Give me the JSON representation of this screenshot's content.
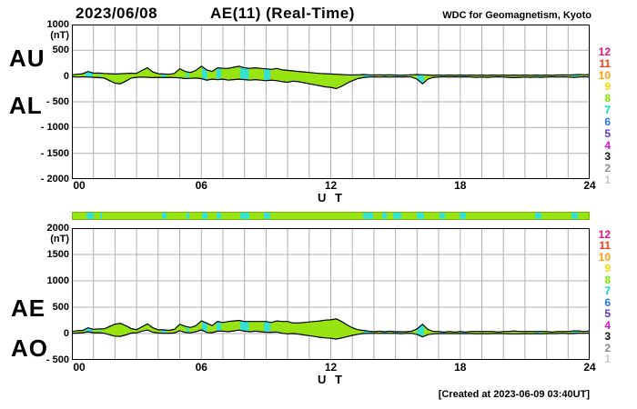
{
  "header": {
    "date": "2023/06/08",
    "title": "AE(11) (Real-Time)",
    "org": "WDC for Geomagnetism, Kyoto"
  },
  "footer": {
    "created_at": "[Created at 2023-06-09 03:40UT]"
  },
  "colors": {
    "band_fill": "#98e312",
    "cyan": "#35e2d2",
    "grid": "#b0b0b0",
    "frame": "#000000",
    "bar_border": "#76b800",
    "background": "#ffffff"
  },
  "legend": {
    "labels": [
      "12",
      "11",
      "10",
      "9",
      "8",
      "7",
      "6",
      "5",
      "4",
      "3",
      "2",
      "1"
    ],
    "colors": [
      "#e8127e",
      "#ff3c14",
      "#ff9c00",
      "#f2d800",
      "#7ce600",
      "#00dcc8",
      "#2473f4",
      "#5c35cc",
      "#d414d4",
      "#111111",
      "#8c8c8c",
      "#c8c8c8"
    ]
  },
  "top_plot": {
    "left_labels": [
      "AU",
      "AL"
    ],
    "unit": "(nT)",
    "ylim": [
      -2000,
      1000
    ],
    "y_ticks": [
      {
        "label": "1000",
        "v": 1000
      },
      {
        "label": "500",
        "v": 500
      },
      {
        "label": "0",
        "v": 0
      },
      {
        "label": "- 500",
        "v": -500
      },
      {
        "label": "- 1000",
        "v": -1000
      },
      {
        "label": "- 1500",
        "v": -1500
      },
      {
        "label": "- 2000",
        "v": -2000
      }
    ],
    "x_ticks": [
      {
        "label": "00",
        "h": 0
      },
      {
        "label": "06",
        "h": 6
      },
      {
        "label": "12",
        "h": 12
      },
      {
        "label": "18",
        "h": 18
      },
      {
        "label": "24",
        "h": 24
      }
    ],
    "x_axis_label": "U T"
  },
  "bottom_plot": {
    "left_labels": [
      "AE",
      "AO"
    ],
    "unit": "(nT)",
    "ylim": [
      -500,
      2000
    ],
    "y_ticks": [
      {
        "label": "2000",
        "v": 2000
      },
      {
        "label": "1500",
        "v": 1500
      },
      {
        "label": "1000",
        "v": 1000
      },
      {
        "label": "500",
        "v": 500
      },
      {
        "label": "0",
        "v": 0
      },
      {
        "label": "- 500",
        "v": -500
      }
    ],
    "x_ticks": [
      {
        "label": "00",
        "h": 0
      },
      {
        "label": "06",
        "h": 6
      },
      {
        "label": "12",
        "h": 12
      },
      {
        "label": "18",
        "h": 18
      },
      {
        "label": "24",
        "h": 24
      }
    ],
    "x_axis_label": "U T"
  },
  "chart_data": [
    {
      "type": "area",
      "title": "AU / AL upper panel",
      "x_start": 0,
      "x_end": 24,
      "x_step": 0.25,
      "x_unit": "hours UT",
      "ylabel": "(nT)",
      "ylim": [
        -2000,
        1000
      ],
      "x_ticks": [
        0,
        6,
        12,
        18,
        24
      ],
      "grid": true,
      "series": [
        {
          "name": "AU",
          "values": [
            25,
            35,
            45,
            90,
            55,
            60,
            50,
            45,
            40,
            45,
            50,
            55,
            50,
            110,
            160,
            80,
            45,
            40,
            35,
            50,
            140,
            90,
            70,
            110,
            190,
            120,
            90,
            160,
            150,
            150,
            170,
            190,
            160,
            150,
            160,
            150,
            140,
            130,
            150,
            120,
            110,
            100,
            90,
            80,
            70,
            60,
            50,
            45,
            40,
            35,
            30,
            25,
            20,
            25,
            30,
            25,
            20,
            25,
            20,
            25,
            20,
            15,
            20,
            25,
            30,
            25,
            20,
            15,
            20,
            15,
            20,
            15,
            20,
            15,
            20,
            15,
            20,
            15,
            20,
            15,
            20,
            15,
            20,
            15,
            20,
            15,
            20,
            15,
            20,
            15,
            20,
            25,
            20,
            25,
            30,
            25,
            30
          ]
        },
        {
          "name": "AL",
          "values": [
            -15,
            -20,
            -15,
            -20,
            -25,
            -30,
            -40,
            -90,
            -140,
            -150,
            -100,
            -40,
            -25,
            -20,
            -25,
            -30,
            -25,
            -30,
            -25,
            -30,
            -35,
            -50,
            -45,
            -40,
            -50,
            -80,
            -60,
            -70,
            -60,
            -80,
            -70,
            -60,
            -70,
            -80,
            -70,
            -80,
            -90,
            -80,
            -90,
            -110,
            -120,
            -100,
            -110,
            -130,
            -150,
            -170,
            -190,
            -210,
            -220,
            -245,
            -200,
            -140,
            -90,
            -50,
            -30,
            -20,
            -15,
            -20,
            -15,
            -20,
            -15,
            -20,
            -15,
            -20,
            -60,
            -150,
            -60,
            -25,
            -20,
            -15,
            -20,
            -15,
            -20,
            -15,
            -20,
            -25,
            -20,
            -25,
            -20,
            -15,
            -20,
            -25,
            -30,
            -25,
            -20,
            -25,
            -20,
            -25,
            -20,
            -15,
            -20,
            -15,
            -20,
            -25,
            -20,
            -15,
            -20
          ]
        }
      ]
    },
    {
      "type": "area",
      "title": "AE / AO lower panel",
      "x_start": 0,
      "x_end": 24,
      "x_step": 0.25,
      "x_unit": "hours UT",
      "ylabel": "(nT)",
      "ylim": [
        -500,
        2000
      ],
      "x_ticks": [
        0,
        6,
        12,
        18,
        24
      ],
      "grid": true,
      "series": [
        {
          "name": "AE",
          "values": [
            40,
            55,
            60,
            110,
            80,
            90,
            90,
            135,
            180,
            195,
            150,
            95,
            75,
            130,
            185,
            110,
            70,
            70,
            60,
            80,
            175,
            140,
            115,
            150,
            240,
            200,
            150,
            230,
            210,
            230,
            240,
            250,
            230,
            230,
            230,
            230,
            230,
            210,
            240,
            230,
            230,
            200,
            200,
            210,
            220,
            230,
            240,
            255,
            260,
            280,
            230,
            165,
            110,
            75,
            60,
            45,
            35,
            45,
            35,
            45,
            35,
            35,
            35,
            45,
            90,
            175,
            80,
            40,
            40,
            30,
            40,
            30,
            40,
            30,
            40,
            40,
            40,
            40,
            40,
            30,
            40,
            40,
            50,
            40,
            40,
            40,
            40,
            40,
            40,
            30,
            40,
            40,
            40,
            50,
            50,
            40,
            50
          ]
        },
        {
          "name": "AO",
          "values": [
            5,
            8,
            15,
            35,
            15,
            15,
            5,
            -23,
            -50,
            -53,
            -25,
            8,
            13,
            45,
            68,
            25,
            10,
            5,
            5,
            10,
            53,
            20,
            13,
            35,
            70,
            20,
            15,
            45,
            45,
            35,
            50,
            65,
            45,
            35,
            45,
            35,
            25,
            25,
            30,
            5,
            -5,
            0,
            -10,
            -25,
            -40,
            -55,
            -70,
            -83,
            -90,
            -105,
            -85,
            -58,
            -35,
            -13,
            0,
            3,
            3,
            3,
            3,
            3,
            3,
            -3,
            3,
            3,
            -15,
            -63,
            -20,
            -5,
            0,
            0,
            0,
            0,
            0,
            0,
            0,
            -5,
            0,
            -5,
            0,
            0,
            0,
            -5,
            -5,
            -5,
            0,
            -5,
            0,
            -5,
            0,
            0,
            0,
            5,
            0,
            0,
            5,
            5,
            5
          ]
        }
      ]
    },
    {
      "type": "heatmap",
      "title": "hourly status strip",
      "x_start": 0,
      "x_end": 24,
      "x_unit": "hours UT",
      "base_color": "#98e312",
      "segment_color": "#35e2d2",
      "segment_hours": [
        [
          0.63,
          0.98
        ],
        [
          1.26,
          1.34
        ],
        [
          4.14,
          4.38
        ],
        [
          5.3,
          5.42
        ],
        [
          6.03,
          6.27
        ],
        [
          6.7,
          6.92
        ],
        [
          7.8,
          8.2
        ],
        [
          8.9,
          9.2
        ],
        [
          13.5,
          13.95
        ],
        [
          14.4,
          14.62
        ],
        [
          14.9,
          15.3
        ],
        [
          16.0,
          16.32
        ],
        [
          17.05,
          17.32
        ],
        [
          18.0,
          18.3
        ],
        [
          21.5,
          21.78
        ],
        [
          23.2,
          23.5
        ]
      ]
    }
  ]
}
